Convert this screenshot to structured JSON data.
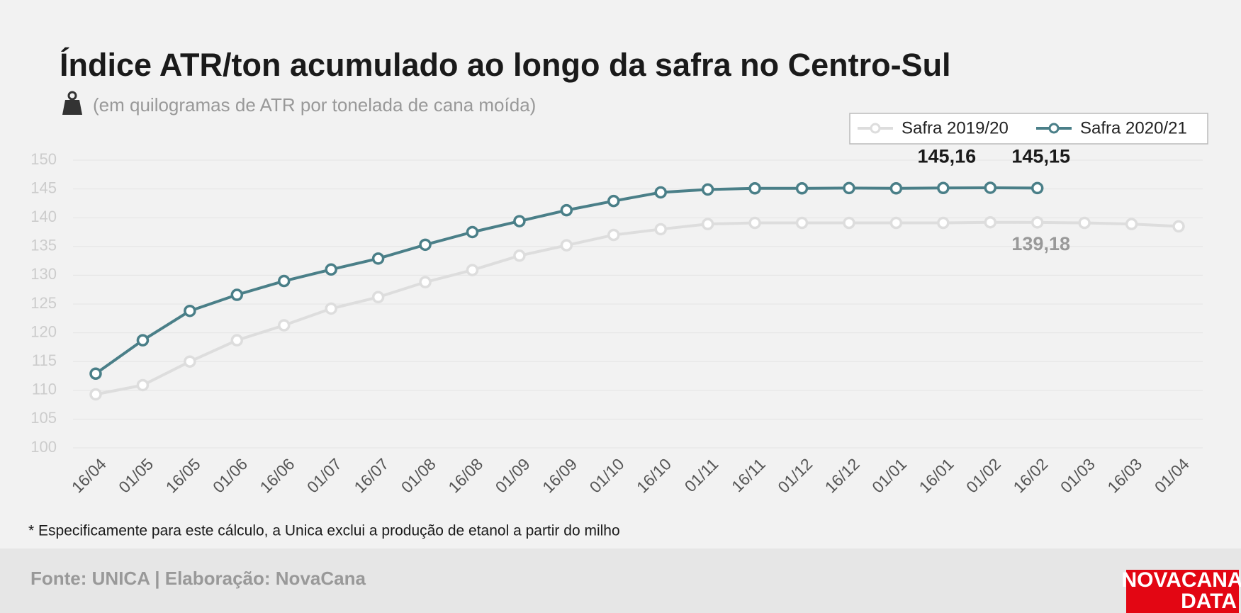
{
  "chart_data": {
    "type": "line",
    "title": "Índice ATR/ton acumulado ao longo da safra no Centro-Sul",
    "subtitle": "(em quilogramas de ATR por tonelada de cana moída)",
    "categories": [
      "16/04",
      "01/05",
      "16/05",
      "01/06",
      "16/06",
      "01/07",
      "16/07",
      "01/08",
      "16/08",
      "01/09",
      "16/09",
      "01/10",
      "16/10",
      "01/11",
      "16/11",
      "01/12",
      "16/12",
      "01/01",
      "16/01",
      "01/02",
      "16/02",
      "01/03",
      "16/03",
      "01/04"
    ],
    "series": [
      {
        "name": "Safra 2019/20",
        "color": "#dddddd",
        "label_color": "#999999",
        "values": [
          109.3,
          110.9,
          115.0,
          118.7,
          121.3,
          124.2,
          126.2,
          128.8,
          130.9,
          133.4,
          135.2,
          137.0,
          138.0,
          138.9,
          139.1,
          139.1,
          139.1,
          139.1,
          139.1,
          139.2,
          139.18,
          139.1,
          138.9,
          138.5
        ],
        "value_labels": [
          null,
          null,
          null,
          null,
          null,
          null,
          null,
          null,
          null,
          null,
          null,
          null,
          null,
          null,
          null,
          null,
          null,
          null,
          null,
          null,
          "139,18",
          null,
          null,
          null
        ]
      },
      {
        "name": "Safra 2020/21",
        "color": "#4a7f88",
        "label_color": "#1a1a1a",
        "values": [
          112.9,
          118.7,
          123.8,
          126.6,
          129.0,
          131.0,
          132.9,
          135.3,
          137.5,
          139.4,
          141.3,
          142.9,
          144.4,
          144.9,
          145.1,
          145.1,
          145.15,
          145.1,
          145.16,
          145.2,
          145.15,
          null,
          null,
          null
        ],
        "value_labels": [
          null,
          null,
          null,
          null,
          null,
          null,
          null,
          null,
          null,
          null,
          null,
          null,
          null,
          null,
          null,
          null,
          null,
          null,
          "145,16",
          null,
          "145,15",
          null,
          null,
          null
        ]
      }
    ],
    "ylim": [
      100,
      150
    ],
    "yticks": [
      100,
      105,
      110,
      115,
      120,
      125,
      130,
      135,
      140,
      145,
      150
    ],
    "grid": true,
    "legend": "top-right",
    "footnote": "* Especificamente para este cálculo, a Unica exclui a produção de etanol a partir do milho",
    "source": "Fonte: UNICA | Elaboração: NovaCana",
    "logo": [
      "NOVACANA",
      "DATA"
    ]
  }
}
